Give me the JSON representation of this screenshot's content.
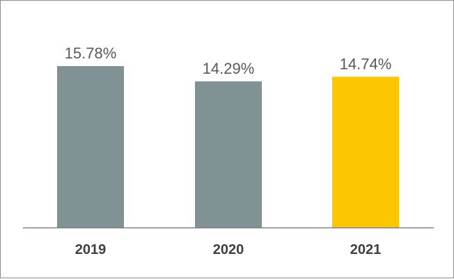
{
  "chart_data": {
    "type": "bar",
    "categories": [
      "2019",
      "2020",
      "2021"
    ],
    "values": [
      15.78,
      14.29,
      14.74
    ],
    "value_labels": [
      "15.78%",
      "14.29%",
      "14.74%"
    ],
    "bar_colors": [
      "#809293",
      "#809293",
      "#fcc600"
    ],
    "ylim": [
      0,
      15.78
    ],
    "grid": false,
    "legend": "none",
    "label_color": "#595959",
    "category_label_color": "#404040",
    "axis_color": "#808080"
  }
}
